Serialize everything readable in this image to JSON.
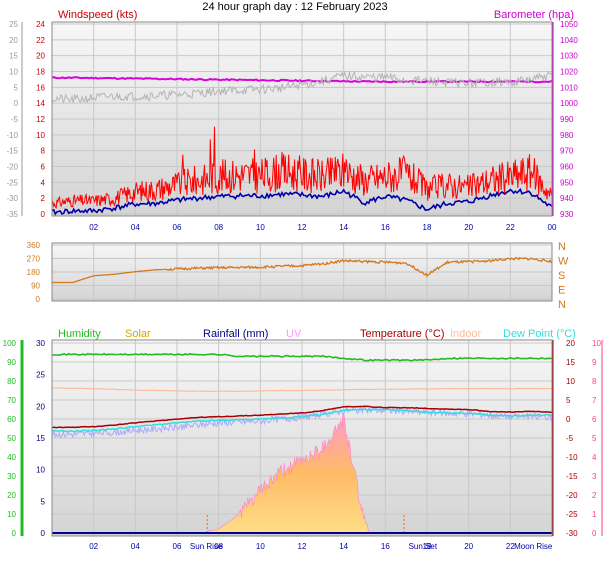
{
  "title": "24 hour graph day : 12 February 2023",
  "colors": {
    "wind": "#ff0000",
    "wind_dark": "#0000aa",
    "gust_grey": "#b4b4b4",
    "baro": "#dd00dd",
    "dir": "#d2781e",
    "humidity": "#22bb22",
    "solar": "#ccaa00",
    "rain": "#000088",
    "uv": "#ff99ff",
    "temp": "#aa0000",
    "indoor": "#ffbb99",
    "dew": "#33dddd",
    "apparent": "#aaaaff",
    "temp_scale": "#ff4477",
    "time": "#0000aa"
  },
  "chart_data": [
    {
      "type": "line",
      "panel": "wind-baro",
      "title": "24 hour graph day : 12 February 2023",
      "left_label": "Windspeed (kts)",
      "right_label": "Barometer (hpa)",
      "left_ticks": [
        "24",
        "22",
        "20",
        "18",
        "16",
        "14",
        "12",
        "10",
        "8",
        "6",
        "4",
        "2",
        "0"
      ],
      "outer_left_ticks": [
        "25",
        "20",
        "15",
        "10",
        "5",
        "0",
        "-5",
        "-10",
        "-15",
        "-20",
        "-25",
        "-30",
        "-35"
      ],
      "right_ticks": [
        "1050",
        "1040",
        "1030",
        "1020",
        "1010",
        "1000",
        "990",
        "980",
        "970",
        "960",
        "950",
        "940",
        "930"
      ],
      "x_ticks": [
        "02",
        "04",
        "06",
        "08",
        "10",
        "12",
        "14",
        "16",
        "18",
        "20",
        "22",
        "00"
      ],
      "ylim_wind": [
        0,
        25
      ],
      "ylim_baro": [
        980,
        1050
      ],
      "x_hours": [
        0,
        1,
        2,
        3,
        4,
        5,
        6,
        7,
        8,
        9,
        10,
        11,
        12,
        13,
        14,
        15,
        16,
        17,
        18,
        19,
        20,
        21,
        22,
        23,
        24
      ],
      "series": [
        {
          "role": "baro",
          "values": [
            1030.2,
            1030.2,
            1030.1,
            1030.0,
            1029.9,
            1029.8,
            1029.7,
            1029.6,
            1029.5,
            1029.4,
            1029.3,
            1029.2,
            1029.1,
            1029.0,
            1028.9,
            1028.8,
            1028.8,
            1028.8,
            1028.8,
            1028.8,
            1028.8,
            1028.8,
            1028.8,
            1028.8,
            1028.8
          ]
        },
        {
          "role": "gust",
          "values": [
            15.2,
            15.0,
            15.3,
            15.5,
            15.5,
            15.6,
            15.7,
            15.9,
            16.2,
            16.3,
            16.4,
            16.6,
            17.0,
            17.5,
            18.2,
            18.0,
            18.0,
            17.6,
            17.5,
            17.3,
            17.2,
            17.4,
            17.3,
            17.7,
            18.2
          ]
        },
        {
          "role": "wind_gust",
          "values": [
            1.2,
            1.5,
            1.5,
            1.8,
            2.5,
            2.8,
            3.3,
            3.8,
            4.2,
            4.4,
            4.3,
            4.8,
            4.5,
            4.2,
            4.8,
            3.8,
            4.2,
            4.5,
            2.8,
            3.3,
            3.0,
            3.8,
            4.2,
            4.8,
            2.0
          ]
        },
        {
          "role": "wind_avg",
          "values": [
            0.2,
            0.4,
            0.4,
            0.8,
            1.3,
            1.4,
            1.8,
            2.1,
            2.3,
            2.4,
            2.4,
            2.6,
            2.5,
            2.3,
            3.0,
            1.5,
            2.3,
            1.8,
            0.6,
            1.4,
            1.6,
            2.4,
            3.1,
            2.8,
            0.8
          ]
        }
      ]
    },
    {
      "type": "line",
      "panel": "direction",
      "left_ticks": [
        "360",
        "270",
        "180",
        "90",
        "0"
      ],
      "right_ticks": [
        "N",
        "W",
        "S",
        "E",
        "N"
      ],
      "ylim": [
        0,
        360
      ],
      "x_hours": [
        0,
        1,
        2,
        3,
        4,
        5,
        6,
        7,
        8,
        9,
        10,
        11,
        12,
        13,
        14,
        15,
        16,
        17,
        18,
        19,
        20,
        21,
        22,
        23,
        24
      ],
      "series": [
        {
          "role": "direction",
          "values": [
            110,
            110,
            155,
            165,
            182,
            195,
            200,
            205,
            208,
            210,
            212,
            218,
            222,
            235,
            255,
            250,
            245,
            240,
            160,
            245,
            248,
            255,
            268,
            268,
            250
          ]
        }
      ]
    },
    {
      "type": "line",
      "panel": "temperature",
      "legend": [
        "Humidity",
        "Solar",
        "Rainfall (mm)",
        "UV",
        "Temperature (°C)",
        "Indoor",
        "Dew Point (°C)"
      ],
      "humidity_ticks": [
        "100",
        "90",
        "80",
        "70",
        "60",
        "50",
        "40",
        "30",
        "20",
        "10",
        "0"
      ],
      "rain_ticks": [
        "30",
        "25",
        "20",
        "15",
        "10",
        "5",
        "0"
      ],
      "temp_ticks": [
        "20",
        "15",
        "10",
        "5",
        "0",
        "-5",
        "-10",
        "-15",
        "-20",
        "-25",
        "-30"
      ],
      "uv_ticks": [
        "10",
        "9",
        "8",
        "7",
        "6",
        "5",
        "4",
        "3",
        "2",
        "1",
        "0"
      ],
      "x_ticks": [
        "02",
        "04",
        "06",
        "08",
        "10",
        "12",
        "14",
        "16",
        "18",
        "20",
        "22"
      ],
      "annotations": [
        "Sun Rise",
        "Sun Set",
        "Moon Rise"
      ],
      "ylim_temp": [
        -30,
        20
      ],
      "ylim_humidity": [
        0,
        100
      ],
      "x_hours": [
        0,
        1,
        2,
        3,
        4,
        5,
        6,
        7,
        8,
        9,
        10,
        11,
        12,
        13,
        14,
        15,
        16,
        17,
        18,
        19,
        20,
        21,
        22,
        23,
        24
      ],
      "series": [
        {
          "role": "humidity",
          "values": [
            94,
            94,
            94,
            94,
            94,
            94,
            94,
            94,
            94,
            93,
            93,
            93,
            93,
            93,
            92,
            91,
            91,
            91,
            91,
            92,
            92,
            92,
            92,
            92,
            92
          ]
        },
        {
          "role": "indoor",
          "values": [
            8.2,
            8.1,
            8.0,
            7.8,
            7.6,
            7.5,
            7.4,
            7.3,
            7.3,
            7.3,
            7.4,
            7.5,
            7.5,
            7.6,
            7.7,
            7.8,
            7.8,
            7.9,
            7.9,
            8.0,
            8.0,
            8.0,
            8.0,
            8.0,
            8.0
          ]
        },
        {
          "role": "temp",
          "values": [
            -2.2,
            -2.2,
            -2.0,
            -1.6,
            -1.0,
            -0.5,
            0.0,
            0.4,
            0.6,
            0.8,
            1.0,
            1.3,
            1.6,
            2.2,
            3.2,
            3.3,
            3.0,
            3.0,
            2.8,
            2.6,
            2.5,
            2.0,
            1.8,
            2.0,
            1.8
          ]
        },
        {
          "role": "dew",
          "values": [
            -3.2,
            -3.2,
            -3.0,
            -2.6,
            -2.0,
            -1.5,
            -1.0,
            -0.6,
            -0.4,
            -0.2,
            0.0,
            0.3,
            0.6,
            1.2,
            2.3,
            2.5,
            2.4,
            2.2,
            1.8,
            1.6,
            1.5,
            1.0,
            0.8,
            1.0,
            1.0
          ]
        },
        {
          "role": "apparent",
          "values": [
            -4.0,
            -4.0,
            -3.8,
            -3.5,
            -3.0,
            -2.6,
            -2.2,
            -1.6,
            -1.0,
            -0.8,
            -0.5,
            0.0,
            0.5,
            1.2,
            2.2,
            2.4,
            2.3,
            2.0,
            1.8,
            1.5,
            1.5,
            1.0,
            0.6,
            0.6,
            0.5
          ]
        },
        {
          "role": "rain",
          "values": [
            0,
            0,
            0,
            0,
            0,
            0,
            0,
            0,
            0,
            0,
            0,
            0,
            0,
            0,
            0,
            0,
            0,
            0,
            0,
            0,
            0,
            0,
            0,
            0,
            0
          ]
        },
        {
          "role": "solar_uv",
          "values": [
            0,
            0,
            0,
            0,
            0,
            0,
            0,
            0,
            0.2,
            1.0,
            2.2,
            3.2,
            3.8,
            4.5,
            6.0,
            0.5,
            0.0,
            0,
            0,
            0,
            0,
            0,
            0,
            0,
            0
          ]
        }
      ]
    }
  ]
}
